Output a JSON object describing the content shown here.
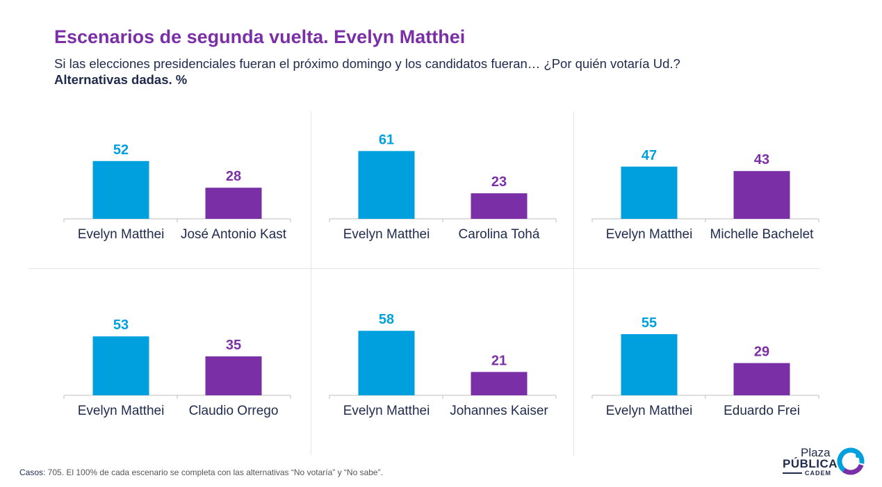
{
  "header": {
    "title": "Escenarios de segunda vuelta. Evelyn Matthei",
    "subtitle": "Si las elecciones presidenciales fueran el próximo domingo y los candidatos fueran… ¿Por quién votaría Ud.?",
    "subtitle_bold": "Alternativas dadas. %"
  },
  "colors": {
    "matthei": "#00a0df",
    "rival": "#7b2fa6",
    "text": "#1f2a4d"
  },
  "chart_data": [
    {
      "type": "bar",
      "categories": [
        "Evelyn Matthei",
        "José Antonio Kast"
      ],
      "values": [
        52,
        28
      ],
      "ylim": [
        0,
        70
      ]
    },
    {
      "type": "bar",
      "categories": [
        "Evelyn Matthei",
        "Carolina Tohá"
      ],
      "values": [
        61,
        23
      ],
      "ylim": [
        0,
        70
      ]
    },
    {
      "type": "bar",
      "categories": [
        "Evelyn Matthei",
        "Michelle Bachelet"
      ],
      "values": [
        47,
        43
      ],
      "ylim": [
        0,
        70
      ]
    },
    {
      "type": "bar",
      "categories": [
        "Evelyn Matthei",
        "Claudio Orrego"
      ],
      "values": [
        53,
        35
      ],
      "ylim": [
        0,
        70
      ]
    },
    {
      "type": "bar",
      "categories": [
        "Evelyn Matthei",
        "Johannes Kaiser"
      ],
      "values": [
        58,
        21
      ],
      "ylim": [
        0,
        70
      ]
    },
    {
      "type": "bar",
      "categories": [
        "Evelyn Matthei",
        "Eduardo Frei"
      ],
      "values": [
        55,
        29
      ],
      "ylim": [
        0,
        70
      ]
    }
  ],
  "footer": {
    "label": "Casos",
    "text": ": 705. El 100% de cada escenario se completa con las alternativas “No votaría” y “No sabe”."
  },
  "logo": {
    "line1": "Plaza",
    "line2": "PÚBLICA",
    "line3": "CADEM"
  }
}
